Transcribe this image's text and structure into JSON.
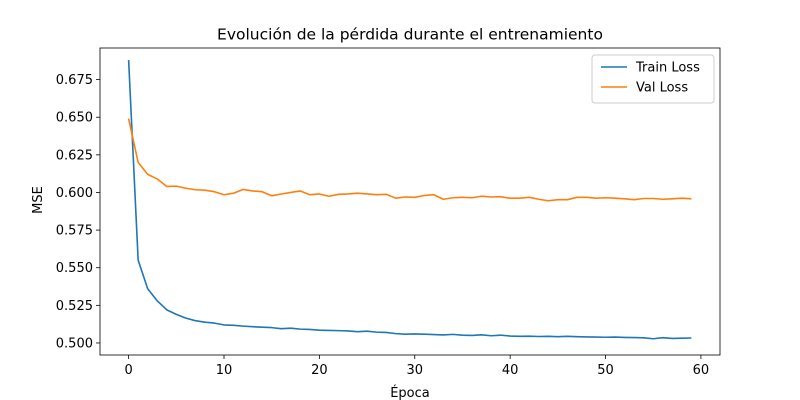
{
  "chart_data": {
    "type": "line",
    "title": "Evolución de la pérdida durante el entrenamiento",
    "xlabel": "Época",
    "ylabel": "MSE",
    "xlim": [
      -3,
      62
    ],
    "ylim": [
      0.492,
      0.696
    ],
    "xticks": [
      0,
      10,
      20,
      30,
      40,
      50,
      60
    ],
    "yticks": [
      0.5,
      0.525,
      0.55,
      0.575,
      0.6,
      0.625,
      0.65,
      0.675
    ],
    "ytick_labels": [
      "0.500",
      "0.525",
      "0.550",
      "0.575",
      "0.600",
      "0.625",
      "0.650",
      "0.675"
    ],
    "grid": false,
    "legend_position": "top-right",
    "series": [
      {
        "name": "Train Loss",
        "color": "#1f77b4",
        "values": [
          0.688,
          0.555,
          0.536,
          0.528,
          0.522,
          0.519,
          0.5165,
          0.5148,
          0.5138,
          0.5132,
          0.512,
          0.5117,
          0.5112,
          0.5108,
          0.5105,
          0.5102,
          0.5095,
          0.5098,
          0.5092,
          0.509,
          0.5085,
          0.5083,
          0.5082,
          0.508,
          0.5075,
          0.5078,
          0.5072,
          0.507,
          0.5062,
          0.5058,
          0.506,
          0.5058,
          0.5056,
          0.5053,
          0.5057,
          0.5052,
          0.505,
          0.5054,
          0.5048,
          0.5052,
          0.5046,
          0.5044,
          0.5045,
          0.5043,
          0.5044,
          0.5042,
          0.5044,
          0.5042,
          0.504,
          0.5039,
          0.5038,
          0.5039,
          0.5037,
          0.5036,
          0.5034,
          0.5028,
          0.5035,
          0.503,
          0.5032,
          0.5033
        ]
      },
      {
        "name": "Val Loss",
        "color": "#ff7f0e",
        "values": [
          0.649,
          0.62,
          0.612,
          0.609,
          0.604,
          0.6042,
          0.6028,
          0.6018,
          0.6015,
          0.6005,
          0.5985,
          0.5995,
          0.602,
          0.601,
          0.6005,
          0.5978,
          0.599,
          0.6,
          0.601,
          0.5985,
          0.599,
          0.5975,
          0.5988,
          0.599,
          0.5995,
          0.599,
          0.5985,
          0.5988,
          0.5962,
          0.597,
          0.5968,
          0.598,
          0.5985,
          0.5955,
          0.5965,
          0.5968,
          0.5965,
          0.5975,
          0.597,
          0.5972,
          0.5962,
          0.5962,
          0.5968,
          0.5955,
          0.5945,
          0.5952,
          0.5952,
          0.5968,
          0.5968,
          0.5962,
          0.5965,
          0.5962,
          0.5958,
          0.5952,
          0.596,
          0.596,
          0.5955,
          0.5958,
          0.5962,
          0.5958
        ]
      }
    ]
  }
}
